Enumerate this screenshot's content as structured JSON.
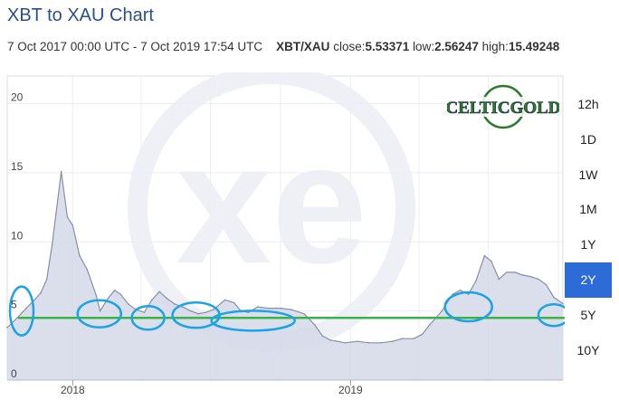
{
  "header": {
    "title": "XBT to XAU Chart",
    "date_range": "7 Oct 2017 00:00 UTC - 7 Oct 2019 17:54 UTC",
    "pair": "XBT/XAU",
    "close_label": "close:",
    "close_value": "5.53371",
    "low_label": "low:",
    "low_value": "2.56247",
    "high_label": "high:",
    "high_value": "15.49248"
  },
  "logo": {
    "text": "CELTICGOLD",
    "color": "#2d7a2d"
  },
  "watermark": {
    "text": "xe"
  },
  "range_buttons": [
    {
      "label": "12h",
      "active": false
    },
    {
      "label": "1D",
      "active": false
    },
    {
      "label": "1W",
      "active": false
    },
    {
      "label": "1M",
      "active": false
    },
    {
      "label": "1Y",
      "active": false
    },
    {
      "label": "2Y",
      "active": true
    },
    {
      "label": "5Y",
      "active": false
    },
    {
      "label": "10Y",
      "active": false
    }
  ],
  "colors": {
    "area_fill": "#d5d8e8",
    "line": "#8a8fa8",
    "accent": "#2d6bd6",
    "support_line": "#3bb34a",
    "annotation_ellipse": "#1aa3e6"
  },
  "chart_data": {
    "type": "area",
    "title": "XBT to XAU Chart",
    "xlabel": "",
    "ylabel": "",
    "x_tick_labels": [
      "2018",
      "2019"
    ],
    "x_tick_dates": [
      "2018-01-01",
      "2019-01-01"
    ],
    "y_tick_labels": [
      "0",
      "5",
      "10",
      "15",
      "20"
    ],
    "ylim": [
      0,
      22
    ],
    "grid": true,
    "series": [
      {
        "x": [
          "2017-10-07",
          "2017-10-20",
          "2017-11-01",
          "2017-11-10",
          "2017-11-20",
          "2017-11-28",
          "2017-12-05",
          "2017-12-10",
          "2017-12-17",
          "2017-12-25",
          "2018-01-01",
          "2018-01-10",
          "2018-01-20",
          "2018-02-01",
          "2018-02-06",
          "2018-02-15",
          "2018-02-25",
          "2018-03-05",
          "2018-03-15",
          "2018-03-25",
          "2018-04-05",
          "2018-04-15",
          "2018-04-25",
          "2018-05-05",
          "2018-05-15",
          "2018-05-25",
          "2018-06-05",
          "2018-06-15",
          "2018-06-25",
          "2018-07-05",
          "2018-07-20",
          "2018-08-01",
          "2018-08-10",
          "2018-08-20",
          "2018-09-01",
          "2018-09-15",
          "2018-10-01",
          "2018-10-15",
          "2018-11-01",
          "2018-11-15",
          "2018-11-25",
          "2018-12-05",
          "2018-12-15",
          "2018-12-25",
          "2019-01-10",
          "2019-01-25",
          "2019-02-10",
          "2019-02-25",
          "2019-03-10",
          "2019-03-25",
          "2019-04-05",
          "2019-04-15",
          "2019-05-01",
          "2019-05-15",
          "2019-05-25",
          "2019-06-05",
          "2019-06-15",
          "2019-06-26",
          "2019-07-05",
          "2019-07-15",
          "2019-07-25",
          "2019-08-05",
          "2019-08-15",
          "2019-08-25",
          "2019-09-05",
          "2019-09-15",
          "2019-09-25",
          "2019-10-07"
        ],
        "values": [
          3.8,
          4.5,
          5.2,
          5.7,
          6.3,
          7.3,
          9.8,
          12.0,
          15.1,
          11.8,
          11.2,
          9.0,
          8.0,
          6.1,
          5.0,
          5.8,
          6.5,
          6.2,
          5.5,
          5.1,
          4.9,
          5.8,
          6.4,
          5.9,
          5.5,
          5.3,
          5.0,
          4.8,
          4.9,
          5.1,
          5.8,
          5.6,
          5.0,
          4.9,
          5.3,
          5.2,
          5.2,
          5.1,
          4.8,
          4.0,
          3.2,
          2.9,
          2.8,
          2.7,
          2.8,
          2.7,
          2.7,
          2.8,
          3.0,
          3.0,
          3.3,
          4.0,
          5.0,
          6.2,
          6.5,
          6.2,
          7.2,
          9.0,
          8.6,
          7.3,
          7.8,
          7.8,
          7.6,
          7.5,
          7.3,
          6.9,
          6.0,
          5.53
        ]
      }
    ],
    "support_level": 4.5,
    "annotations": [
      {
        "type": "ellipse",
        "x": "2017-10-26",
        "y": 5.0
      },
      {
        "type": "ellipse",
        "x": "2018-02-05",
        "y": 4.8
      },
      {
        "type": "ellipse",
        "x": "2018-04-10",
        "y": 4.5
      },
      {
        "type": "ellipse",
        "x": "2018-06-12",
        "y": 4.7
      },
      {
        "type": "ellipse",
        "x": "2018-08-26",
        "y": 4.3
      },
      {
        "type": "ellipse",
        "x": "2019-06-05",
        "y": 5.3
      },
      {
        "type": "ellipse",
        "x": "2019-09-25",
        "y": 4.7
      }
    ]
  }
}
